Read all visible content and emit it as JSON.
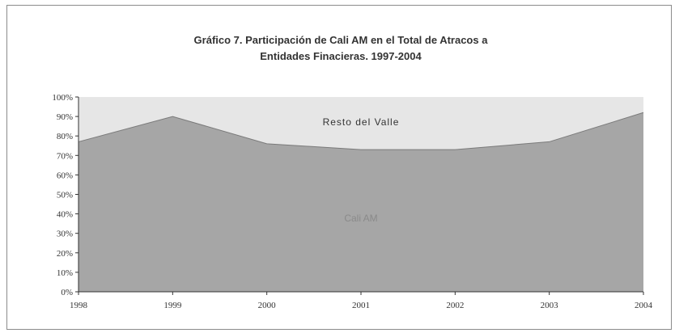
{
  "chart_data": {
    "type": "area",
    "stacked": true,
    "percent_stacked": true,
    "title_lines": [
      "Gráfico 7. Participación de Cali AM en el Total de Atracos a",
      "Entidades Finacieras. 1997-2004"
    ],
    "x": [
      "1998",
      "1999",
      "2000",
      "2001",
      "2002",
      "2003",
      "2004"
    ],
    "series": [
      {
        "name": "Cali AM",
        "values": [
          77,
          90,
          76,
          73,
          73,
          77,
          92
        ],
        "color": "#a6a6a6"
      },
      {
        "name": "Resto del Valle",
        "values": [
          23,
          10,
          24,
          27,
          27,
          23,
          8
        ],
        "color": "#e6e6e6"
      }
    ],
    "yticks": [
      "0%",
      "10%",
      "20%",
      "30%",
      "40%",
      "50%",
      "60%",
      "70%",
      "80%",
      "90%",
      "100%"
    ],
    "ylim": [
      0,
      100
    ],
    "grid": false,
    "legend": "none"
  }
}
